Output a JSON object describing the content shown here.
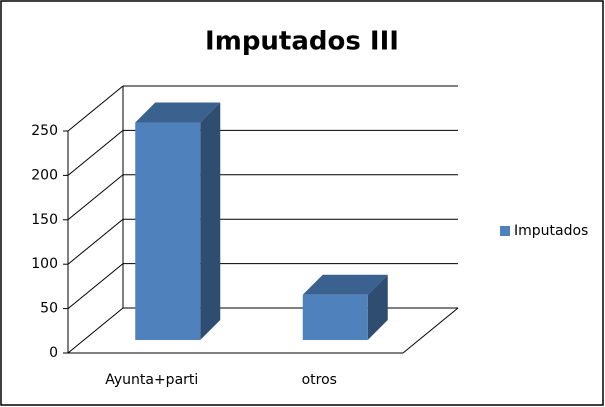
{
  "chart_data": {
    "type": "bar3d",
    "title": "Imputados III",
    "categories": [
      "Ayunta+parti",
      "otros"
    ],
    "series": [
      {
        "name": "Imputados",
        "color": "#4f81bd",
        "values": [
          245,
          51
        ]
      }
    ],
    "ylim": [
      0,
      250
    ],
    "yticks": [
      0,
      50,
      100,
      150,
      200,
      250
    ],
    "grid": true,
    "legend": "right"
  }
}
